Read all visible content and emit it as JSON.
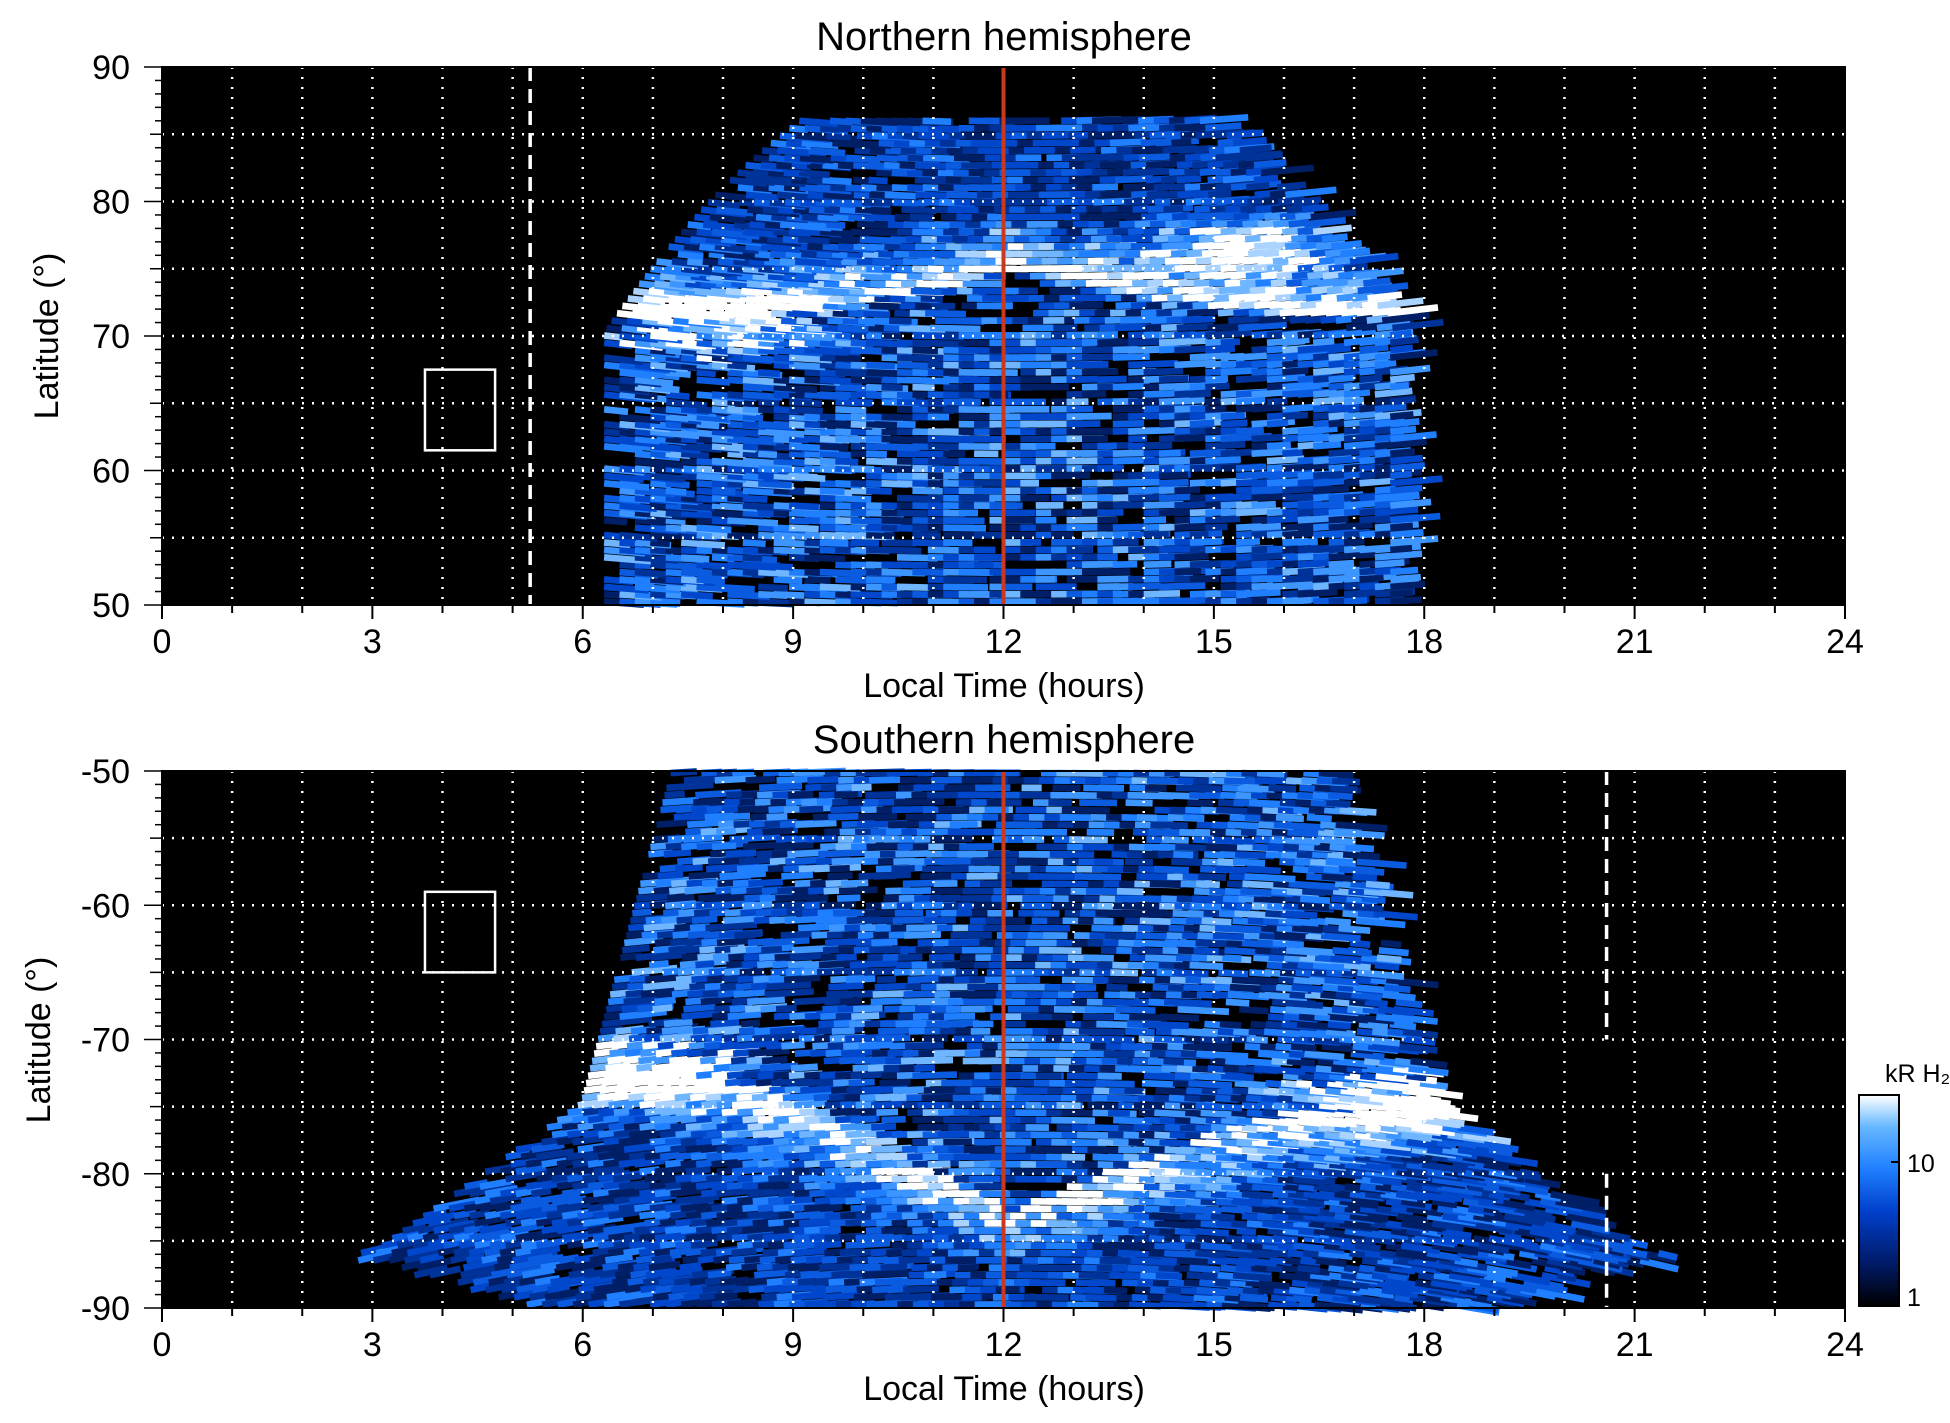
{
  "chart_data": [
    {
      "type": "heatmap",
      "title": "Northern hemisphere",
      "xlabel": "Local Time (hours)",
      "ylabel": "Latitude (°)",
      "xlim": [
        0,
        24
      ],
      "ylim": [
        50,
        90
      ],
      "xticks": [
        "0",
        "3",
        "6",
        "9",
        "12",
        "15",
        "18",
        "21",
        "24"
      ],
      "yticks": [
        "50",
        "60",
        "70",
        "80",
        "90"
      ],
      "grid": true,
      "background": "#000000",
      "noon_marker_x": 12,
      "noon_marker_color": "#c8391f",
      "dashed_marker_x": 5.25,
      "dashed_marker_y": [
        50,
        90
      ],
      "box": {
        "x": [
          3.75,
          4.75
        ],
        "y": [
          61.5,
          67.5
        ]
      },
      "emission_region": {
        "x_min": 6.4,
        "x_max": 17.8,
        "y_top": 86
      },
      "auroral_oval_latitude": {
        "dawn": 71,
        "noon": 75,
        "dusk": 71
      },
      "bright_spots": [
        {
          "x": 7.8,
          "y": 70.5
        },
        {
          "x": 15.3,
          "y": 76.5
        }
      ]
    },
    {
      "type": "heatmap",
      "title": "Southern hemisphere",
      "xlabel": "Local Time (hours)",
      "ylabel": "Latitude (°)",
      "xlim": [
        0,
        24
      ],
      "ylim": [
        -90,
        -50
      ],
      "xticks": [
        "0",
        "3",
        "6",
        "9",
        "12",
        "15",
        "18",
        "21",
        "24"
      ],
      "yticks": [
        "-50",
        "-60",
        "-70",
        "-80",
        "-90"
      ],
      "grid": true,
      "background": "#000000",
      "noon_marker_x": 12,
      "noon_marker_color": "#c8391f",
      "dashed_marker_x": 20.6,
      "dashed_marker_y": [
        -90,
        -50
      ],
      "box": {
        "x": [
          3.75,
          4.75
        ],
        "y": [
          -65,
          -59
        ]
      },
      "emission_region": {
        "x_min": 2.3,
        "x_max": 21.2,
        "y_top": -50
      },
      "auroral_oval_latitude": {
        "dawn": -72.5,
        "noon": -83,
        "dusk": -74.5
      },
      "bright_spots": [
        {
          "x": 6.6,
          "y": -72.5
        },
        {
          "x": 17.3,
          "y": -74.5
        }
      ]
    }
  ],
  "colorbar": {
    "label": "kR H₂",
    "scale": "log",
    "range": [
      1,
      30
    ],
    "ticks": [
      "1",
      "10"
    ],
    "colors": [
      "#000000",
      "#001a66",
      "#0040cc",
      "#1f7fff",
      "#66b8ff",
      "#ffffff"
    ]
  }
}
